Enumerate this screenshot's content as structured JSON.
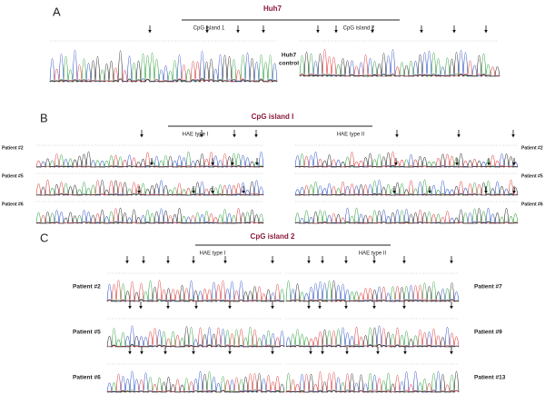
{
  "panel_a": {
    "label": "A",
    "title": "Huh7",
    "headings": [
      "CpG island 1",
      "CpG island 2"
    ],
    "sample": [
      "Huh7",
      "control"
    ]
  },
  "panel_b": {
    "label": "B",
    "title": "CpG island I",
    "headings": [
      "HAE type I",
      "HAE type II"
    ],
    "left_patients": [
      "Patient #2",
      "Patient #5",
      "Patient #6"
    ],
    "right_patients": [
      "Patient #2",
      "Patient #5",
      "Patient #6"
    ]
  },
  "panel_c": {
    "label": "C",
    "title": "CpG island 2",
    "headings": [
      "HAE type I",
      "HAE type II"
    ],
    "left_patients": [
      "Patient #2",
      "Patient #5",
      "Patient #6"
    ],
    "right_patients": [
      "Patient #7",
      "Patient #9",
      "Patient #13"
    ]
  }
}
